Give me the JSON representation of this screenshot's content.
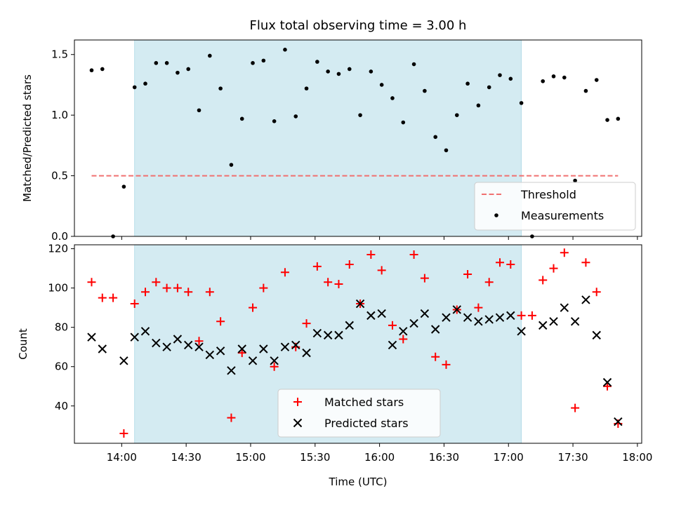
{
  "chart_data": [
    {
      "type": "scatter",
      "title": "Flux total observing time = 3.00 h",
      "xlabel": "",
      "ylabel": "Matched/Predicted stars",
      "xlim": [
        "13:38",
        "18:02"
      ],
      "ylim": [
        0,
        1.62
      ],
      "yticks": [
        0,
        0.5,
        1.0,
        1.5
      ],
      "ytick_labels": [
        "0.0",
        "0.5",
        "1.0",
        "1.5"
      ],
      "highlight_span": [
        "14:06",
        "17:06"
      ],
      "highlight_color": "#d4ebf2",
      "legend": {
        "position": "bottom-right",
        "entries": [
          "Threshold",
          "Measurements"
        ]
      },
      "threshold": {
        "name": "Threshold",
        "value": 0.5,
        "x_range": [
          "13:46",
          "17:51"
        ],
        "color": "#f07070"
      },
      "series": [
        {
          "name": "Measurements",
          "marker": "dot",
          "color": "#000000",
          "points": [
            [
              "13:46",
              1.37
            ],
            [
              "13:51",
              1.38
            ],
            [
              "13:56",
              0.0
            ],
            [
              "14:01",
              0.41
            ],
            [
              "14:06",
              1.23
            ],
            [
              "14:11",
              1.26
            ],
            [
              "14:16",
              1.43
            ],
            [
              "14:21",
              1.43
            ],
            [
              "14:26",
              1.35
            ],
            [
              "14:31",
              1.38
            ],
            [
              "14:36",
              1.04
            ],
            [
              "14:41",
              1.49
            ],
            [
              "14:46",
              1.22
            ],
            [
              "14:51",
              0.59
            ],
            [
              "14:56",
              0.97
            ],
            [
              "15:01",
              1.43
            ],
            [
              "15:06",
              1.45
            ],
            [
              "15:11",
              0.95
            ],
            [
              "15:16",
              1.54
            ],
            [
              "15:21",
              0.99
            ],
            [
              "15:26",
              1.22
            ],
            [
              "15:31",
              1.44
            ],
            [
              "15:36",
              1.36
            ],
            [
              "15:41",
              1.34
            ],
            [
              "15:46",
              1.38
            ],
            [
              "15:51",
              1.0
            ],
            [
              "15:56",
              1.36
            ],
            [
              "16:01",
              1.25
            ],
            [
              "16:06",
              1.14
            ],
            [
              "16:11",
              0.94
            ],
            [
              "16:16",
              1.42
            ],
            [
              "16:21",
              1.2
            ],
            [
              "16:26",
              0.82
            ],
            [
              "16:31",
              0.71
            ],
            [
              "16:36",
              1.0
            ],
            [
              "16:41",
              1.26
            ],
            [
              "16:46",
              1.08
            ],
            [
              "16:51",
              1.23
            ],
            [
              "16:56",
              1.33
            ],
            [
              "17:01",
              1.3
            ],
            [
              "17:06",
              1.1
            ],
            [
              "17:11",
              0.0
            ],
            [
              "17:16",
              1.28
            ],
            [
              "17:21",
              1.32
            ],
            [
              "17:26",
              1.31
            ],
            [
              "17:31",
              0.46
            ],
            [
              "17:36",
              1.2
            ],
            [
              "17:41",
              1.29
            ],
            [
              "17:46",
              0.96
            ],
            [
              "17:51",
              0.97
            ]
          ]
        }
      ]
    },
    {
      "type": "scatter",
      "title": "",
      "xlabel": "Time (UTC)",
      "ylabel": "Count",
      "xlim": [
        "13:38",
        "18:02"
      ],
      "ylim": [
        21,
        122
      ],
      "yticks": [
        40,
        60,
        80,
        100,
        120
      ],
      "xticks": [
        "14:00",
        "14:30",
        "15:00",
        "15:30",
        "16:00",
        "16:30",
        "17:00",
        "17:30",
        "18:00"
      ],
      "highlight_span": [
        "14:06",
        "17:06"
      ],
      "legend": {
        "position": "bottom-center",
        "entries": [
          "Matched stars",
          "Predicted stars"
        ]
      },
      "series": [
        {
          "name": "Matched stars",
          "marker": "plus",
          "color": "#ff0000",
          "points": [
            [
              "13:46",
              103
            ],
            [
              "13:51",
              95
            ],
            [
              "13:56",
              95
            ],
            [
              "14:01",
              26
            ],
            [
              "14:06",
              92
            ],
            [
              "14:11",
              98
            ],
            [
              "14:16",
              103
            ],
            [
              "14:21",
              100
            ],
            [
              "14:26",
              100
            ],
            [
              "14:31",
              98
            ],
            [
              "14:36",
              73
            ],
            [
              "14:41",
              98
            ],
            [
              "14:46",
              83
            ],
            [
              "14:51",
              34
            ],
            [
              "14:56",
              67
            ],
            [
              "15:01",
              90
            ],
            [
              "15:06",
              100
            ],
            [
              "15:11",
              60
            ],
            [
              "15:16",
              108
            ],
            [
              "15:21",
              70
            ],
            [
              "15:26",
              82
            ],
            [
              "15:31",
              111
            ],
            [
              "15:36",
              103
            ],
            [
              "15:41",
              102
            ],
            [
              "15:46",
              112
            ],
            [
              "15:51",
              92
            ],
            [
              "15:56",
              117
            ],
            [
              "16:01",
              109
            ],
            [
              "16:06",
              81
            ],
            [
              "16:11",
              74
            ],
            [
              "16:16",
              117
            ],
            [
              "16:21",
              105
            ],
            [
              "16:26",
              65
            ],
            [
              "16:31",
              61
            ],
            [
              "16:36",
              89
            ],
            [
              "16:41",
              107
            ],
            [
              "16:46",
              90
            ],
            [
              "16:51",
              103
            ],
            [
              "16:56",
              113
            ],
            [
              "17:01",
              112
            ],
            [
              "17:06",
              86
            ],
            [
              "17:11",
              86
            ],
            [
              "17:16",
              104
            ],
            [
              "17:21",
              110
            ],
            [
              "17:26",
              118
            ],
            [
              "17:31",
              39
            ],
            [
              "17:36",
              113
            ],
            [
              "17:41",
              98
            ],
            [
              "17:46",
              50
            ],
            [
              "17:51",
              31
            ]
          ]
        },
        {
          "name": "Predicted stars",
          "marker": "x",
          "color": "#000000",
          "points": [
            [
              "13:46",
              75
            ],
            [
              "13:51",
              69
            ],
            [
              "14:01",
              63
            ],
            [
              "14:06",
              75
            ],
            [
              "14:11",
              78
            ],
            [
              "14:16",
              72
            ],
            [
              "14:21",
              70
            ],
            [
              "14:26",
              74
            ],
            [
              "14:31",
              71
            ],
            [
              "14:36",
              70
            ],
            [
              "14:41",
              66
            ],
            [
              "14:46",
              68
            ],
            [
              "14:51",
              58
            ],
            [
              "14:56",
              69
            ],
            [
              "15:01",
              63
            ],
            [
              "15:06",
              69
            ],
            [
              "15:11",
              63
            ],
            [
              "15:16",
              70
            ],
            [
              "15:21",
              71
            ],
            [
              "15:26",
              67
            ],
            [
              "15:31",
              77
            ],
            [
              "15:36",
              76
            ],
            [
              "15:41",
              76
            ],
            [
              "15:46",
              81
            ],
            [
              "15:51",
              92
            ],
            [
              "15:56",
              86
            ],
            [
              "16:01",
              87
            ],
            [
              "16:06",
              71
            ],
            [
              "16:11",
              78
            ],
            [
              "16:16",
              82
            ],
            [
              "16:21",
              87
            ],
            [
              "16:26",
              79
            ],
            [
              "16:31",
              85
            ],
            [
              "16:36",
              89
            ],
            [
              "16:41",
              85
            ],
            [
              "16:46",
              83
            ],
            [
              "16:51",
              84
            ],
            [
              "16:56",
              85
            ],
            [
              "17:01",
              86
            ],
            [
              "17:06",
              78
            ],
            [
              "17:16",
              81
            ],
            [
              "17:21",
              83
            ],
            [
              "17:26",
              90
            ],
            [
              "17:31",
              83
            ],
            [
              "17:36",
              94
            ],
            [
              "17:41",
              76
            ],
            [
              "17:46",
              52
            ],
            [
              "17:51",
              32
            ]
          ]
        }
      ]
    }
  ]
}
